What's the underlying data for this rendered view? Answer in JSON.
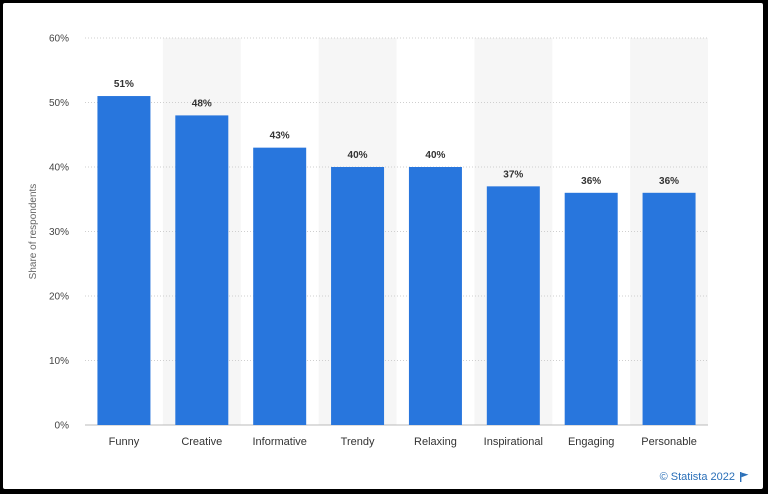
{
  "colors": {
    "bar": "#2876dd",
    "band": "#f6f6f6",
    "grid": "#cfcfcf"
  },
  "credit": {
    "text": "© Statista 2022",
    "icon": "flag-icon"
  },
  "chart_data": {
    "type": "bar",
    "title": "",
    "xlabel": "",
    "ylabel": "Share of respondents",
    "categories": [
      "Funny",
      "Creative",
      "Informative",
      "Trendy",
      "Relaxing",
      "Inspirational",
      "Engaging",
      "Personable"
    ],
    "values": [
      51,
      48,
      43,
      40,
      40,
      37,
      36,
      36
    ],
    "value_labels": [
      "51%",
      "48%",
      "43%",
      "40%",
      "40%",
      "37%",
      "36%",
      "36%"
    ],
    "ylim": [
      0,
      60
    ],
    "yticks": [
      0,
      10,
      20,
      30,
      40,
      50,
      60
    ],
    "ytick_labels": [
      "0%",
      "10%",
      "20%",
      "30%",
      "40%",
      "50%",
      "60%"
    ],
    "grid": true,
    "legend": "none"
  }
}
